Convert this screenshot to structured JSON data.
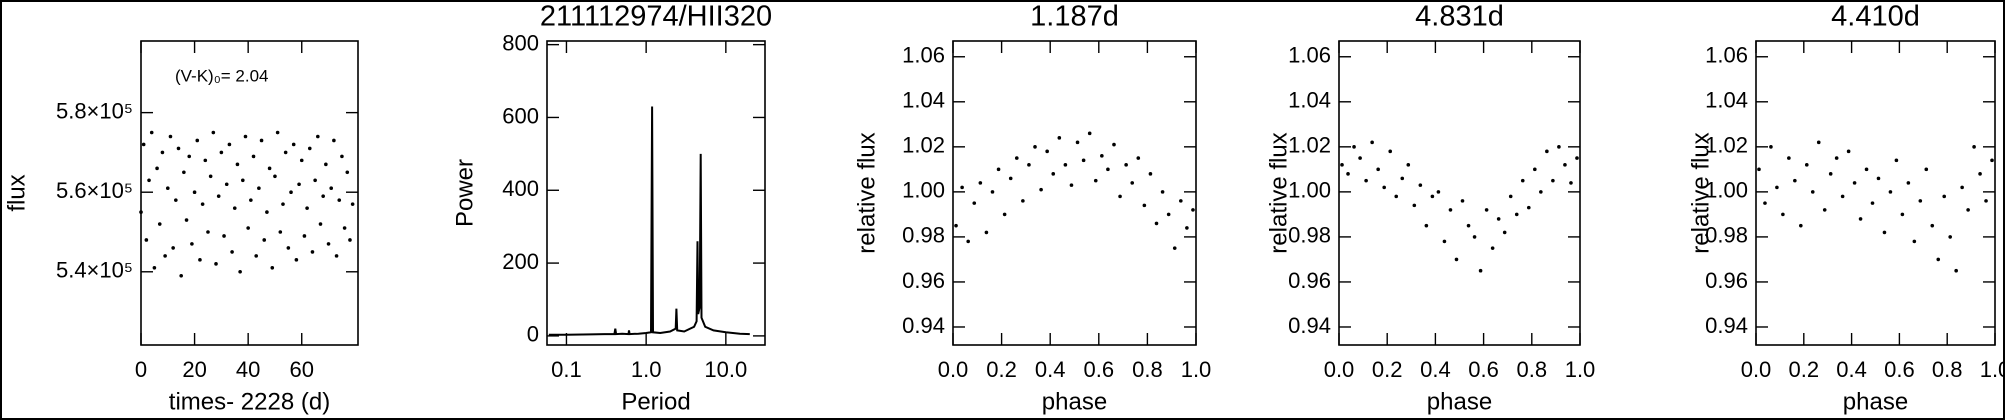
{
  "chart_data": [
    {
      "type": "scatter",
      "x_label": "times- 2228 (d)",
      "y_label": "flux",
      "annotation": "(V-K)₀= 2.04",
      "x": [
        0,
        1,
        2,
        3,
        4,
        5,
        6,
        7,
        8,
        9,
        10,
        11,
        12,
        13,
        14,
        15,
        16,
        17,
        18,
        19,
        20,
        21,
        22,
        23,
        24,
        25,
        26,
        27,
        28,
        29,
        30,
        31,
        32,
        33,
        34,
        35,
        36,
        37,
        38,
        39,
        40,
        41,
        42,
        43,
        44,
        45,
        46,
        47,
        48,
        49,
        50,
        51,
        52,
        53,
        54,
        55,
        56,
        57,
        58,
        59,
        60,
        61,
        62,
        63,
        64,
        65,
        66,
        67,
        68,
        69,
        70,
        71,
        72,
        73,
        74,
        75,
        76,
        77,
        78,
        79
      ],
      "series": [
        {
          "color": "#000000",
          "values": [
            555000,
            572000,
            548000,
            563000,
            575000,
            541000,
            566000,
            552000,
            570000,
            544000,
            561000,
            574000,
            546000,
            558000,
            571000,
            539000,
            565000,
            553000,
            569000,
            547000,
            560000,
            573000,
            543000,
            557000,
            568000,
            550000,
            564000,
            575000,
            542000,
            559000,
            570000,
            549000,
            562000,
            572000,
            545000,
            556000,
            567000,
            540000,
            563000,
            574000,
            551000,
            558000,
            569000,
            544000,
            561000,
            573000,
            548000,
            555000,
            566000,
            541000,
            564000,
            575000,
            550000,
            557000,
            570000,
            546000,
            560000,
            572000,
            543000,
            562000,
            568000,
            549000,
            556000,
            571000,
            545000,
            563000,
            574000,
            552000,
            559000,
            567000,
            547000,
            561000,
            573000,
            544000,
            558000,
            569000,
            551000,
            565000,
            548000,
            557000
          ]
        }
      ],
      "xlim": [
        0,
        81
      ],
      "xticks": [
        0,
        20,
        40,
        60
      ],
      "ylim": [
        521600,
        598000
      ],
      "yticks": [
        {
          "value": 540000,
          "label": "5.4×10⁵"
        },
        {
          "value": 560000,
          "label": "5.6×10⁵"
        },
        {
          "value": 580000,
          "label": "5.8×10⁵"
        }
      ]
    },
    {
      "type": "line",
      "title": "211112974/HII320",
      "x_label": "Period",
      "y_label": "Power",
      "xlog": true,
      "x": [
        0.06,
        0.1,
        0.2,
        0.3,
        0.4,
        0.41,
        0.42,
        0.5,
        0.6,
        0.61,
        0.62,
        0.8,
        1.0,
        1.15,
        1.187,
        1.22,
        1.5,
        2.0,
        2.35,
        2.4,
        2.45,
        3.0,
        4.0,
        4.3,
        4.41,
        4.5,
        4.7,
        4.831,
        4.95,
        5.5,
        7,
        10,
        15,
        20
      ],
      "series": [
        {
          "color": "#000000",
          "values": [
            3,
            3,
            4,
            5,
            5,
            20,
            5,
            6,
            5,
            15,
            5,
            6,
            8,
            10,
            630,
            10,
            8,
            12,
            20,
            75,
            15,
            12,
            25,
            40,
            260,
            60,
            80,
            500,
            50,
            25,
            15,
            10,
            6,
            5
          ]
        }
      ],
      "xlim": [
        0.057,
        31
      ],
      "xticks": [
        0.1,
        {
          "value": 1,
          "label": "1.0"
        },
        {
          "value": 10,
          "label": "10.0"
        }
      ],
      "ylim": [
        -25,
        810
      ],
      "yticks": [
        0,
        200,
        400,
        600,
        800
      ]
    },
    {
      "type": "scatter",
      "title": "1.187d",
      "x_label": "phase",
      "y_label": "relative flux",
      "x": [
        0.0125,
        0.0375,
        0.0625,
        0.0875,
        0.1125,
        0.1375,
        0.1625,
        0.1875,
        0.2125,
        0.2375,
        0.2625,
        0.2875,
        0.3125,
        0.3375,
        0.3625,
        0.3875,
        0.4125,
        0.4375,
        0.4625,
        0.4875,
        0.5125,
        0.5375,
        0.5625,
        0.5875,
        0.6125,
        0.6375,
        0.6625,
        0.6875,
        0.7125,
        0.7375,
        0.7625,
        0.7875,
        0.8125,
        0.8375,
        0.8625,
        0.8875,
        0.9125,
        0.9375,
        0.9625,
        0.9875
      ],
      "series": [
        {
          "color": "#000000",
          "values": [
            0.985,
            1.002,
            0.978,
            0.995,
            1.004,
            0.982,
            1.0,
            1.01,
            0.99,
            1.006,
            1.015,
            0.996,
            1.012,
            1.02,
            1.001,
            1.018,
            1.008,
            1.024,
            1.012,
            1.003,
            1.022,
            1.014,
            1.026,
            1.005,
            1.016,
            1.01,
            1.021,
            0.998,
            1.012,
            1.004,
            1.015,
            0.994,
            1.008,
            0.986,
            1.0,
            0.99,
            0.975,
            0.996,
            0.984,
            0.992
          ]
        }
      ],
      "xlim": [
        0,
        1
      ],
      "xticks": [
        {
          "value": 0,
          "label": "0.0"
        },
        0.2,
        0.4,
        0.6,
        0.8,
        {
          "value": 1,
          "label": "1.0"
        }
      ],
      "ylim": [
        0.932,
        1.067
      ],
      "yticks": [
        0.94,
        0.96,
        0.98,
        {
          "value": 1,
          "label": "1.00"
        },
        1.02,
        1.04,
        1.06
      ]
    },
    {
      "type": "scatter",
      "title": "4.831d",
      "x_label": "phase",
      "y_label": "relative flux",
      "x": [
        0.0125,
        0.0375,
        0.0625,
        0.0875,
        0.1125,
        0.1375,
        0.1625,
        0.1875,
        0.2125,
        0.2375,
        0.2625,
        0.2875,
        0.3125,
        0.3375,
        0.3625,
        0.3875,
        0.4125,
        0.4375,
        0.4625,
        0.4875,
        0.5125,
        0.5375,
        0.5625,
        0.5875,
        0.6125,
        0.6375,
        0.6625,
        0.6875,
        0.7125,
        0.7375,
        0.7625,
        0.7875,
        0.8125,
        0.8375,
        0.8625,
        0.8875,
        0.9125,
        0.9375,
        0.9625,
        0.9875
      ],
      "series": [
        {
          "color": "#000000",
          "values": [
            1.012,
            1.008,
            1.02,
            1.015,
            1.005,
            1.022,
            1.01,
            1.002,
            1.018,
            0.998,
            1.006,
            1.012,
            0.994,
            1.003,
            0.985,
            0.998,
            1.0,
            0.978,
            0.992,
            0.97,
            0.996,
            0.985,
            0.98,
            0.965,
            0.992,
            0.975,
            0.988,
            0.982,
            0.998,
            0.99,
            1.005,
            0.993,
            1.01,
            1.0,
            1.018,
            1.005,
            1.02,
            1.012,
            1.004,
            1.015
          ]
        }
      ],
      "xlim": [
        0,
        1
      ],
      "xticks": [
        {
          "value": 0,
          "label": "0.0"
        },
        0.2,
        0.4,
        0.6,
        0.8,
        {
          "value": 1,
          "label": "1.0"
        }
      ],
      "ylim": [
        0.932,
        1.067
      ],
      "yticks": [
        0.94,
        0.96,
        0.98,
        {
          "value": 1,
          "label": "1.00"
        },
        1.02,
        1.04,
        1.06
      ]
    },
    {
      "type": "scatter",
      "title": "4.410d",
      "x_label": "phase",
      "y_label": "relative flux",
      "x": [
        0.0125,
        0.0375,
        0.0625,
        0.0875,
        0.1125,
        0.1375,
        0.1625,
        0.1875,
        0.2125,
        0.2375,
        0.2625,
        0.2875,
        0.3125,
        0.3375,
        0.3625,
        0.3875,
        0.4125,
        0.4375,
        0.4625,
        0.4875,
        0.5125,
        0.5375,
        0.5625,
        0.5875,
        0.6125,
        0.6375,
        0.6625,
        0.6875,
        0.7125,
        0.7375,
        0.7625,
        0.7875,
        0.8125,
        0.8375,
        0.8625,
        0.8875,
        0.9125,
        0.9375,
        0.9625,
        0.9875
      ],
      "series": [
        {
          "color": "#000000",
          "values": [
            1.01,
            0.995,
            1.02,
            1.002,
            0.99,
            1.015,
            1.005,
            0.985,
            1.012,
            1.0,
            1.022,
            0.992,
            1.008,
            1.015,
            0.998,
            1.018,
            1.004,
            0.988,
            1.01,
            0.995,
            1.006,
            0.982,
            1.0,
            1.014,
            0.99,
            1.004,
            0.978,
            0.996,
            1.01,
            0.985,
            0.97,
            0.998,
            0.98,
            0.965,
            1.002,
            0.992,
            1.02,
            1.008,
            0.996,
            1.014
          ]
        }
      ],
      "xlim": [
        0,
        1
      ],
      "xticks": [
        {
          "value": 0,
          "label": "0.0"
        },
        0.2,
        0.4,
        0.6,
        0.8,
        {
          "value": 1,
          "label": "1.0"
        }
      ],
      "ylim": [
        0.932,
        1.067
      ],
      "yticks": [
        0.94,
        0.96,
        0.98,
        {
          "value": 1,
          "label": "1.00"
        },
        1.02,
        1.04,
        1.06
      ]
    }
  ]
}
